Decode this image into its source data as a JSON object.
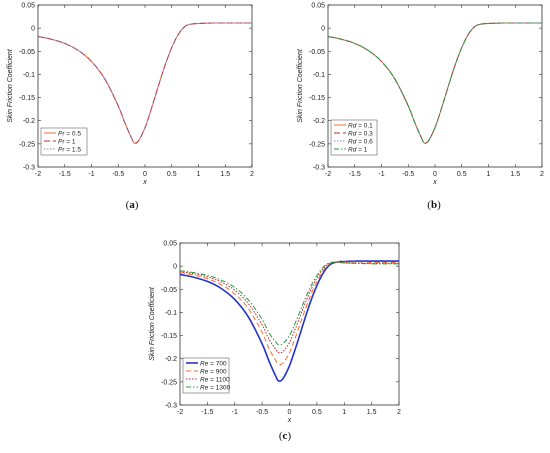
{
  "chart_data": [
    {
      "type": "line",
      "panel_label": "(a)",
      "ylabel": "Skin Friction Coefficient",
      "xlabel": "x",
      "xlim": [
        -2,
        2
      ],
      "ylim": [
        -0.3,
        0.05
      ],
      "xticks": [
        "-2",
        "-1.5",
        "-1",
        "-0.5",
        "0",
        "0.5",
        "1",
        "1.5",
        "2"
      ],
      "yticks": [
        "-0.3",
        "-0.25",
        "-0.2",
        "-0.15",
        "-0.1",
        "-0.05",
        "0",
        "0.05"
      ],
      "legend_position": "bottom-left",
      "x": [
        -2,
        -1.75,
        -1.5,
        -1.25,
        -1,
        -0.75,
        -0.5,
        -0.375,
        -0.25,
        -0.2,
        -0.125,
        0,
        0.125,
        0.25,
        0.375,
        0.5,
        0.625,
        0.75,
        0.875,
        1,
        1.25,
        1.5,
        1.75,
        2
      ],
      "series": [
        {
          "name": "Pr = 0.5",
          "color": "#f07030",
          "dash": "solid",
          "values": [
            -0.018,
            -0.024,
            -0.033,
            -0.048,
            -0.072,
            -0.11,
            -0.168,
            -0.205,
            -0.238,
            -0.248,
            -0.244,
            -0.215,
            -0.172,
            -0.125,
            -0.08,
            -0.042,
            -0.013,
            0.004,
            0.009,
            0.01,
            0.011,
            0.011,
            0.011,
            0.011
          ]
        },
        {
          "name": "Pr = 1",
          "color": "#c0282d",
          "dash": "6,3",
          "values": [
            -0.018,
            -0.024,
            -0.033,
            -0.048,
            -0.072,
            -0.11,
            -0.168,
            -0.205,
            -0.238,
            -0.248,
            -0.244,
            -0.215,
            -0.172,
            -0.125,
            -0.08,
            -0.042,
            -0.013,
            0.004,
            0.009,
            0.01,
            0.011,
            0.011,
            0.011,
            0.011
          ]
        },
        {
          "name": "Pr = 1.5",
          "color": "#8c7cc4",
          "dash": "1.5,1.5",
          "values": [
            -0.018,
            -0.024,
            -0.033,
            -0.048,
            -0.072,
            -0.11,
            -0.168,
            -0.205,
            -0.238,
            -0.248,
            -0.244,
            -0.215,
            -0.172,
            -0.125,
            -0.08,
            -0.042,
            -0.013,
            0.004,
            0.009,
            0.01,
            0.011,
            0.011,
            0.011,
            0.011
          ]
        }
      ]
    },
    {
      "type": "line",
      "panel_label": "(b)",
      "ylabel": "Skin Friction Coefficient",
      "xlabel": "x",
      "xlim": [
        -2,
        2
      ],
      "ylim": [
        -0.3,
        0.05
      ],
      "xticks": [
        "-2",
        "-1.5",
        "-1",
        "-0.5",
        "0",
        "0.5",
        "1",
        "1.5",
        "2"
      ],
      "yticks": [
        "-0.3",
        "-0.25",
        "-0.2",
        "-0.15",
        "-0.1",
        "-0.05",
        "0",
        "0.05"
      ],
      "legend_position": "bottom-left",
      "x": [
        -2,
        -1.75,
        -1.5,
        -1.25,
        -1,
        -0.75,
        -0.5,
        -0.375,
        -0.25,
        -0.2,
        -0.125,
        0,
        0.125,
        0.25,
        0.375,
        0.5,
        0.625,
        0.75,
        0.875,
        1,
        1.25,
        1.5,
        1.75,
        2
      ],
      "series": [
        {
          "name": "Rd = 0.1",
          "color": "#f07030",
          "dash": "solid",
          "values": [
            -0.018,
            -0.024,
            -0.033,
            -0.048,
            -0.072,
            -0.11,
            -0.168,
            -0.205,
            -0.238,
            -0.248,
            -0.244,
            -0.215,
            -0.172,
            -0.125,
            -0.08,
            -0.042,
            -0.013,
            0.004,
            0.009,
            0.01,
            0.011,
            0.011,
            0.011,
            0.011
          ]
        },
        {
          "name": "Rd = 0.3",
          "color": "#c0282d",
          "dash": "6,3",
          "values": [
            -0.018,
            -0.024,
            -0.033,
            -0.048,
            -0.072,
            -0.11,
            -0.168,
            -0.205,
            -0.238,
            -0.248,
            -0.244,
            -0.215,
            -0.172,
            -0.125,
            -0.08,
            -0.042,
            -0.013,
            0.004,
            0.009,
            0.01,
            0.011,
            0.011,
            0.011,
            0.011
          ]
        },
        {
          "name": "Rd = 0.6",
          "color": "#8c7cc4",
          "dash": "1.5,1.5",
          "values": [
            -0.018,
            -0.024,
            -0.033,
            -0.048,
            -0.072,
            -0.11,
            -0.168,
            -0.205,
            -0.238,
            -0.248,
            -0.244,
            -0.215,
            -0.172,
            -0.125,
            -0.08,
            -0.042,
            -0.013,
            0.004,
            0.009,
            0.01,
            0.011,
            0.011,
            0.011,
            0.011
          ]
        },
        {
          "name": "Rd = 1",
          "color": "#2a9a3a",
          "dash": "5,2,1.5,2",
          "values": [
            -0.018,
            -0.024,
            -0.033,
            -0.048,
            -0.072,
            -0.11,
            -0.168,
            -0.205,
            -0.238,
            -0.248,
            -0.244,
            -0.215,
            -0.172,
            -0.125,
            -0.08,
            -0.042,
            -0.013,
            0.004,
            0.009,
            0.01,
            0.011,
            0.011,
            0.011,
            0.011
          ]
        }
      ]
    },
    {
      "type": "line",
      "panel_label": "(c)",
      "ylabel": "Skin Friction Coefficient",
      "xlabel": "x",
      "xlim": [
        -2,
        2
      ],
      "ylim": [
        -0.3,
        0.05
      ],
      "xticks": [
        "-2",
        "-1.5",
        "-1",
        "-0.5",
        "0",
        "0.5",
        "1",
        "1.5",
        "2"
      ],
      "yticks": [
        "-0.3",
        "-0.25",
        "-0.2",
        "-0.15",
        "-0.1",
        "-0.05",
        "0",
        "0.05"
      ],
      "legend_position": "bottom-left",
      "x": [
        -2,
        -1.75,
        -1.5,
        -1.25,
        -1,
        -0.75,
        -0.5,
        -0.375,
        -0.25,
        -0.2,
        -0.125,
        0,
        0.125,
        0.25,
        0.375,
        0.5,
        0.625,
        0.75,
        0.875,
        1,
        1.25,
        1.5,
        1.75,
        2
      ],
      "series": [
        {
          "name": "Re = 700",
          "color": "#2233cc",
          "dash": "solid",
          "width": 1.6,
          "values": [
            -0.018,
            -0.024,
            -0.033,
            -0.048,
            -0.072,
            -0.11,
            -0.168,
            -0.205,
            -0.238,
            -0.248,
            -0.244,
            -0.215,
            -0.172,
            -0.125,
            -0.08,
            -0.042,
            -0.013,
            0.004,
            0.009,
            0.01,
            0.011,
            0.011,
            0.011,
            0.011
          ]
        },
        {
          "name": "Re = 900",
          "color": "#f07030",
          "dash": "5,3",
          "values": [
            -0.014,
            -0.019,
            -0.027,
            -0.04,
            -0.06,
            -0.092,
            -0.143,
            -0.178,
            -0.204,
            -0.212,
            -0.21,
            -0.187,
            -0.148,
            -0.106,
            -0.066,
            -0.033,
            -0.008,
            0.006,
            0.009,
            0.009,
            0.009,
            0.008,
            0.008,
            0.008
          ]
        },
        {
          "name": "Re = 1100",
          "color": "#c0282d",
          "dash": "1.5,1.5",
          "values": [
            -0.012,
            -0.016,
            -0.023,
            -0.034,
            -0.052,
            -0.081,
            -0.127,
            -0.158,
            -0.18,
            -0.187,
            -0.185,
            -0.165,
            -0.13,
            -0.091,
            -0.055,
            -0.026,
            -0.004,
            0.007,
            0.008,
            0.007,
            0.006,
            0.006,
            0.006,
            0.006
          ]
        },
        {
          "name": "Re = 1300",
          "color": "#2a9a3a",
          "dash": "5,2,1.5,2",
          "values": [
            -0.01,
            -0.014,
            -0.02,
            -0.03,
            -0.046,
            -0.073,
            -0.115,
            -0.144,
            -0.164,
            -0.17,
            -0.168,
            -0.15,
            -0.117,
            -0.081,
            -0.047,
            -0.02,
            -0.001,
            0.008,
            0.008,
            0.007,
            0.006,
            0.005,
            0.005,
            0.005
          ]
        }
      ]
    }
  ]
}
